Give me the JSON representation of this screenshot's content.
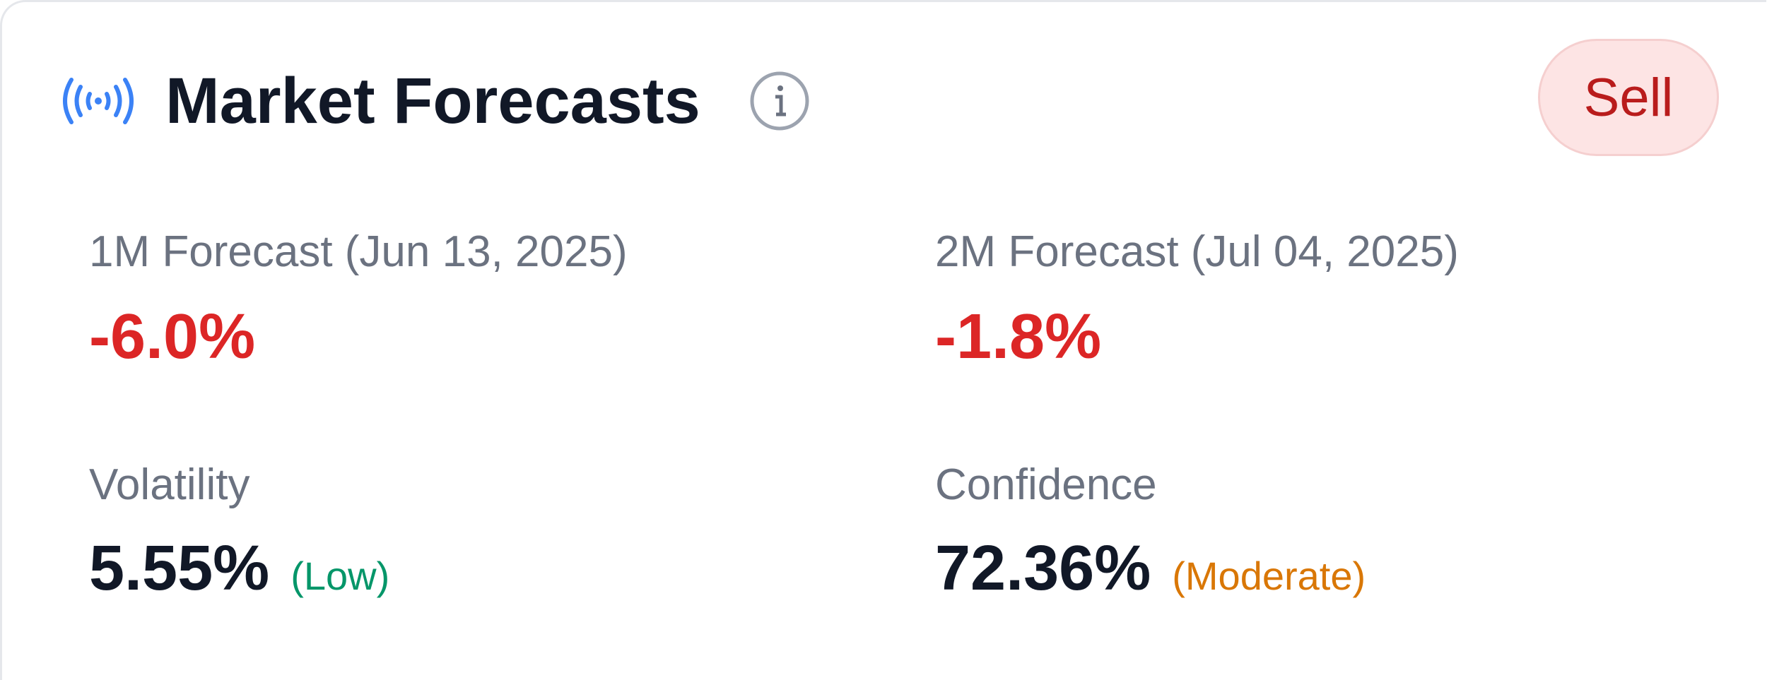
{
  "header": {
    "title": "Market Forecasts",
    "signal": "Sell"
  },
  "metrics": [
    {
      "label": "1M Forecast (Jun 13, 2025)",
      "value": "-6.0%"
    },
    {
      "label": "2M Forecast (Jul 04, 2025)",
      "value": "-1.8%"
    },
    {
      "label": "Volatility",
      "value": "5.55%",
      "rating": "(Low)"
    },
    {
      "label": "Confidence",
      "value": "72.36%",
      "rating": "(Moderate)"
    }
  ]
}
